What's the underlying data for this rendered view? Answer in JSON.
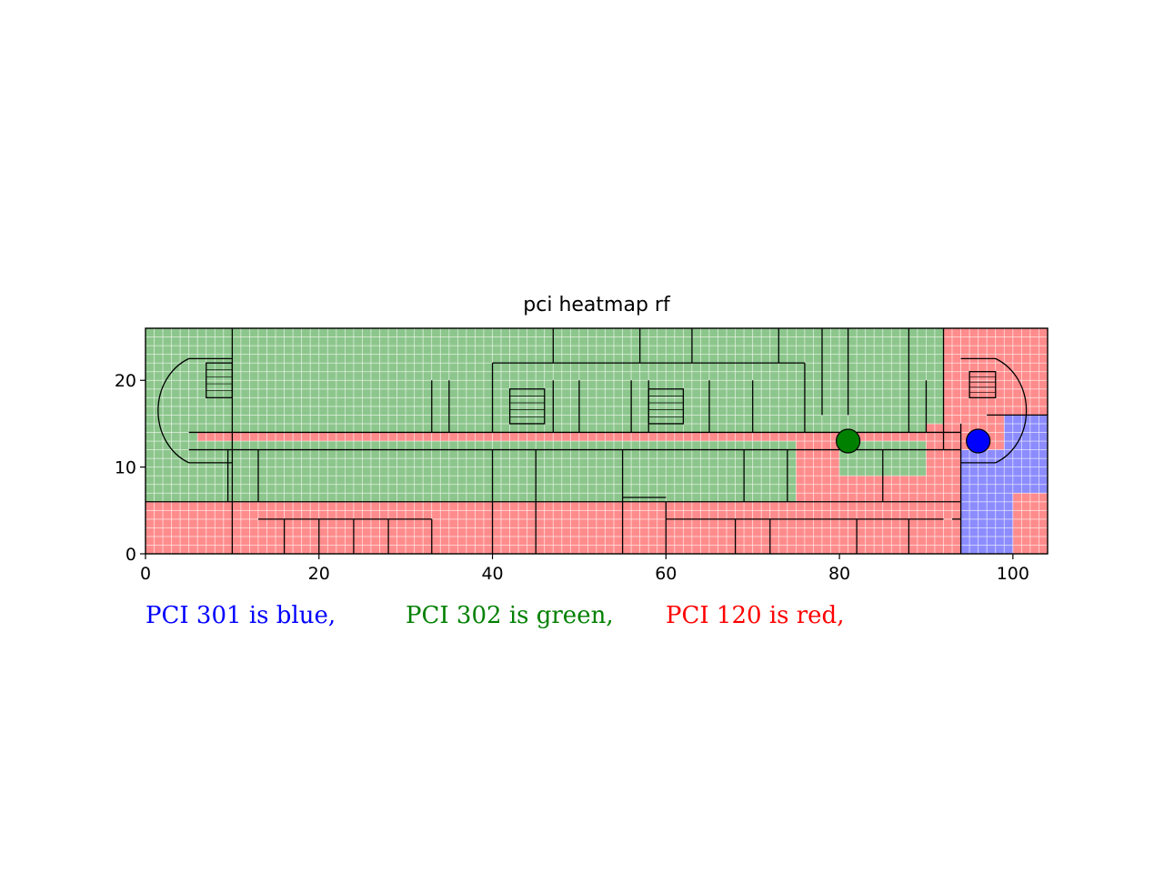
{
  "chart_data": {
    "type": "heatmap",
    "title": "pci heatmap rf",
    "xlabel": "",
    "ylabel": "",
    "xlim": [
      0,
      104
    ],
    "ylim": [
      0,
      26
    ],
    "x_ticks": [
      0,
      20,
      40,
      60,
      80,
      100
    ],
    "y_ticks": [
      0,
      10,
      20
    ],
    "grid": false,
    "background": "floor plan of a building with a central east-west corridor",
    "cell_size": 1,
    "categories": [
      {
        "pci": "301",
        "label": "PCI 301 is blue,",
        "color": "#0000ff"
      },
      {
        "pci": "302",
        "label": "PCI 302 is green,",
        "color": "#008000"
      },
      {
        "pci": "120",
        "label": "PCI 120 is red,",
        "color": "#ff0000"
      }
    ],
    "regions": [
      {
        "pci": "302",
        "x": [
          0,
          104
        ],
        "y": [
          0,
          26
        ]
      },
      {
        "pci": "120",
        "x": [
          0,
          94
        ],
        "y": [
          0,
          6
        ]
      },
      {
        "pci": "120",
        "x": [
          6,
          94
        ],
        "y": [
          13,
          14.5
        ]
      },
      {
        "pci": "120",
        "x": [
          75,
          80
        ],
        "y": [
          6,
          14
        ]
      },
      {
        "pci": "120",
        "x": [
          78,
          94
        ],
        "y": [
          6,
          9
        ]
      },
      {
        "pci": "120",
        "x": [
          90,
          94
        ],
        "y": [
          6,
          15
        ]
      },
      {
        "pci": "120",
        "x": [
          92,
          104
        ],
        "y": [
          14,
          26
        ]
      },
      {
        "pci": "120",
        "x": [
          94,
          104
        ],
        "y": [
          7,
          26
        ]
      },
      {
        "pci": "120",
        "x": [
          94,
          104
        ],
        "y": [
          0,
          7
        ]
      },
      {
        "pci": "301",
        "x": [
          94,
          99
        ],
        "y": [
          0,
          12
        ]
      },
      {
        "pci": "301",
        "x": [
          99,
          104
        ],
        "y": [
          7,
          16
        ]
      },
      {
        "pci": "301",
        "x": [
          99,
          100
        ],
        "y": [
          0,
          7
        ]
      }
    ],
    "base_stations": [
      {
        "pci": "302",
        "x": 81,
        "y": 13,
        "color": "#008000"
      },
      {
        "pci": "301",
        "x": 96,
        "y": 13,
        "color": "#0000ff"
      }
    ]
  }
}
